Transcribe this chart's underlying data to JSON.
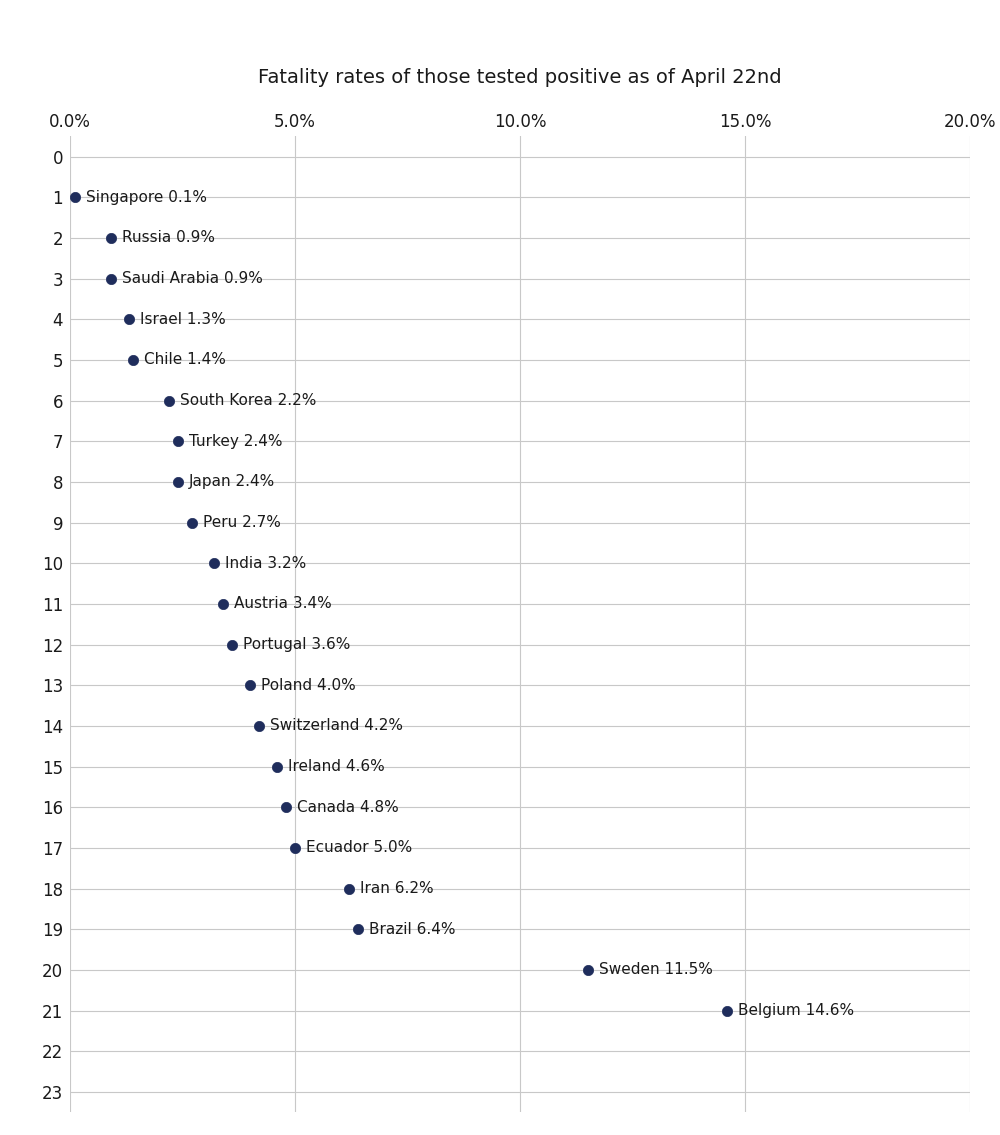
{
  "title": "Fatality rates of those tested positive as of April 22nd",
  "countries": [
    {
      "rank": 1,
      "name": "Singapore",
      "value": 0.1
    },
    {
      "rank": 2,
      "name": "Russia",
      "value": 0.9
    },
    {
      "rank": 3,
      "name": "Saudi Arabia",
      "value": 0.9
    },
    {
      "rank": 4,
      "name": "Israel",
      "value": 1.3
    },
    {
      "rank": 5,
      "name": "Chile",
      "value": 1.4
    },
    {
      "rank": 6,
      "name": "South Korea",
      "value": 2.2
    },
    {
      "rank": 7,
      "name": "Turkey",
      "value": 2.4
    },
    {
      "rank": 8,
      "name": "Japan",
      "value": 2.4
    },
    {
      "rank": 9,
      "name": "Peru",
      "value": 2.7
    },
    {
      "rank": 10,
      "name": "India",
      "value": 3.2
    },
    {
      "rank": 11,
      "name": "Austria",
      "value": 3.4
    },
    {
      "rank": 12,
      "name": "Portugal",
      "value": 3.6
    },
    {
      "rank": 13,
      "name": "Poland",
      "value": 4.0
    },
    {
      "rank": 14,
      "name": "Switzerland",
      "value": 4.2
    },
    {
      "rank": 15,
      "name": "Ireland",
      "value": 4.6
    },
    {
      "rank": 16,
      "name": "Canada",
      "value": 4.8
    },
    {
      "rank": 17,
      "name": "Ecuador",
      "value": 5.0
    },
    {
      "rank": 18,
      "name": "Iran",
      "value": 6.2
    },
    {
      "rank": 19,
      "name": "Brazil",
      "value": 6.4
    },
    {
      "rank": 20,
      "name": "Sweden",
      "value": 11.5
    },
    {
      "rank": 21,
      "name": "Belgium",
      "value": 14.6
    }
  ],
  "xlim": [
    0,
    20.0
  ],
  "ylim_bottom": 23.5,
  "ylim_top": -0.5,
  "xticks": [
    0.0,
    5.0,
    10.0,
    15.0,
    20.0
  ],
  "xtick_labels": [
    "0.0%",
    "5.0%",
    "10.0%",
    "15.0%",
    "20.0%"
  ],
  "yticks": [
    0,
    1,
    2,
    3,
    4,
    5,
    6,
    7,
    8,
    9,
    10,
    11,
    12,
    13,
    14,
    15,
    16,
    17,
    18,
    19,
    20,
    21,
    22,
    23
  ],
  "dot_color": "#1f2d5c",
  "dot_size": 55,
  "text_color": "#1a1a1a",
  "grid_color": "#c8c8c8",
  "background_color": "#ffffff",
  "title_fontsize": 14,
  "tick_fontsize": 12,
  "label_fontsize": 11
}
